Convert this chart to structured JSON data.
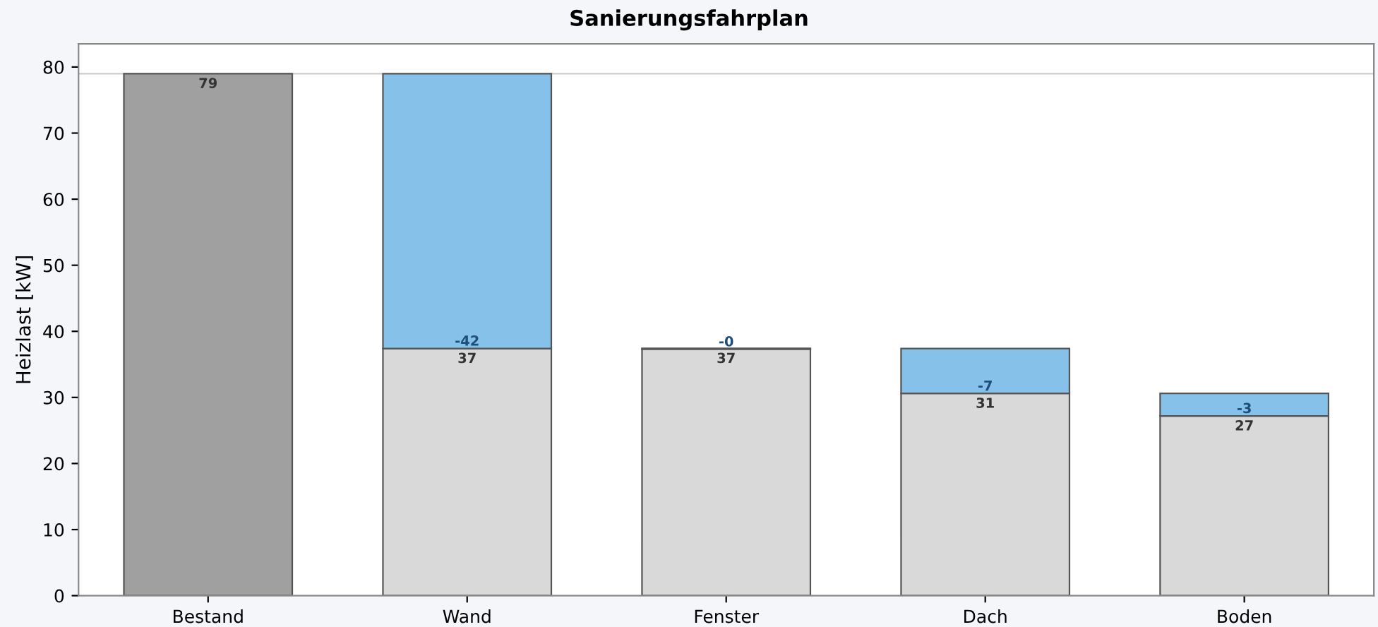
{
  "chart_data": {
    "type": "bar",
    "title": "Sanierungsfahrplan",
    "ylabel": "Heizlast [kW]",
    "categories": [
      "Bestand",
      "Wand",
      "Fenster",
      "Dach",
      "Boden"
    ],
    "series": [
      {
        "colors": [
          "#a0a0a0",
          "#d9d9d9",
          "#d9d9d9",
          "#d9d9d9",
          "#d9d9d9"
        ],
        "values": [
          79,
          37.4,
          37.4,
          30.6,
          27.2
        ],
        "value_labels": [
          "79",
          "37",
          "37",
          "31",
          "27"
        ]
      },
      {
        "color": "#85c1e9",
        "base": [
          null,
          79,
          37.4,
          37.4,
          30.6
        ],
        "values": [
          null,
          -41.6,
          -0.1,
          -6.8,
          -3.4
        ],
        "value_labels": [
          null,
          "-42",
          "-0",
          "-7",
          "-3"
        ]
      }
    ],
    "ylim": [
      0,
      83.5
    ],
    "yticks": [
      0,
      10,
      20,
      30,
      40,
      50,
      60,
      70,
      80
    ],
    "ref_lines": [
      {
        "axis": "y",
        "value": 79,
        "color": "#cccccc"
      }
    ],
    "stacked": true,
    "grid": false
  }
}
